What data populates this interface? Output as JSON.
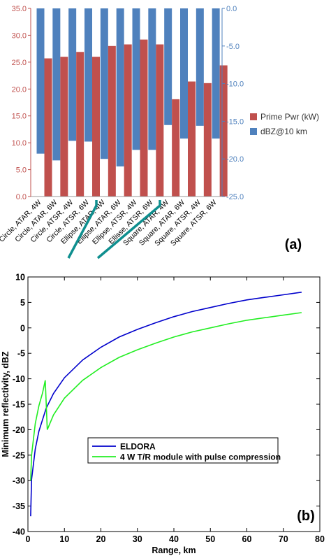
{
  "chart_data": [
    {
      "type": "bar",
      "panel_label": "(a)",
      "categories": [
        "Circle, ATAR, 4W",
        "Circle, ATAR, 6W",
        "Circle, ATSR, 4W",
        "Circle, ATSR, 6W",
        "Ellipse, ATAR, 4W",
        "Ellipse, ATAR, 6W",
        "Ellipse, ATSR, 4W",
        "Ellisse, ATSR, 6W",
        "Square, ATAR, 4W",
        "Square, ATAR, 6W",
        "Square, ATSR, 4W",
        "Square, ATSR, 6W"
      ],
      "series": [
        {
          "name": "Prime Pwr (kW)",
          "axis": "left",
          "color": "#c0504d",
          "values": [
            25.7,
            26.0,
            26.9,
            26.0,
            28.0,
            28.3,
            29.2,
            28.3,
            18.1,
            21.4,
            21.1,
            24.4
          ]
        },
        {
          "name": "dBZ@10 km",
          "axis": "right",
          "color": "#4f81bd",
          "values": [
            -19.3,
            -20.2,
            -17.6,
            -17.7,
            -20.0,
            -21.0,
            -18.8,
            -18.8,
            -15.5,
            -17.3,
            -15.6,
            -17.3
          ]
        }
      ],
      "y_left": {
        "ylim": [
          0,
          35
        ],
        "ticks": [
          "0.0",
          "5.0",
          "10.0",
          "15.0",
          "20.0",
          "25.0",
          "30.0",
          "35.0"
        ]
      },
      "y_right": {
        "ylim": [
          -25,
          0
        ],
        "ticks": [
          "0.0",
          "-5.0",
          "-10.0",
          "-15.0",
          "-20.0",
          "-25.0"
        ]
      },
      "legend_position": "right",
      "grid": false,
      "group_markers": "teal slanted lines separating Circle, Ellipse and Square groups"
    },
    {
      "type": "line",
      "panel_label": "(b)",
      "xlabel": "Range, km",
      "ylabel": "Minimum reflectivity, dBZ",
      "xlim": [
        0,
        80
      ],
      "ylim": [
        -40,
        10
      ],
      "xticks": [
        0,
        10,
        20,
        30,
        40,
        50,
        60,
        70,
        80
      ],
      "yticks": [
        10,
        5,
        0,
        -5,
        -10,
        -15,
        -20,
        -25,
        -30,
        -35,
        -40
      ],
      "series": [
        {
          "name": "ELDORA",
          "color": "#0000cc",
          "x": [
            0.75,
            1,
            2,
            3,
            5,
            7,
            10,
            15,
            20,
            25,
            30,
            35,
            40,
            45,
            50,
            55,
            60,
            65,
            70,
            75
          ],
          "y": [
            -37,
            -29.8,
            -23.8,
            -20.3,
            -15.8,
            -12.9,
            -9.8,
            -6.3,
            -3.8,
            -1.8,
            -0.3,
            1.0,
            2.2,
            3.2,
            4.0,
            4.8,
            5.5,
            6.0,
            6.5,
            7.0
          ]
        },
        {
          "name": "4 W T/R module with pulse compression",
          "color": "#22ee22",
          "x": [
            0.75,
            1,
            2,
            3,
            4,
            4.75,
            5.3,
            7,
            10,
            15,
            20,
            25,
            30,
            35,
            40,
            45,
            50,
            55,
            60,
            65,
            70,
            75
          ],
          "y": [
            -30,
            -25,
            -18.8,
            -15.3,
            -12.8,
            -10.3,
            -20,
            -17.1,
            -13.8,
            -10.3,
            -7.8,
            -5.8,
            -4.3,
            -3.0,
            -1.8,
            -0.8,
            0.0,
            0.8,
            1.5,
            2.0,
            2.5,
            3.0
          ]
        }
      ],
      "legend_position": "center"
    }
  ]
}
